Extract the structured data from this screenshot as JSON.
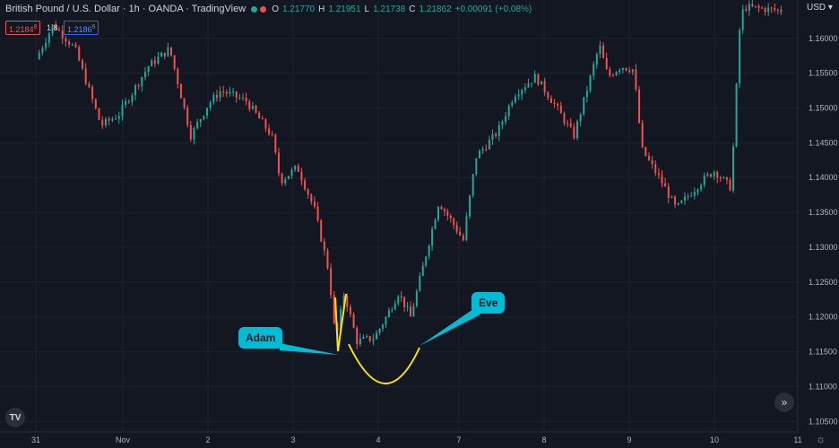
{
  "header": {
    "title": "British Pound / U.S. Dollar · 1h · OANDA · TradingView",
    "ohlc": {
      "o_label": "O",
      "o": "1.21770",
      "h_label": "H",
      "h": "1.21951",
      "l_label": "L",
      "l": "1.21738",
      "c_label": "C",
      "c": "1.21862",
      "change": "+0.00091 (+0.08%)"
    }
  },
  "trade": {
    "sell": "1.2184",
    "sell_sup": "8",
    "spread": "1.8",
    "buy": "1.2186",
    "buy_sup": "6"
  },
  "currency": "USD",
  "logo": "TV",
  "scroll_icon": "»",
  "settings_icon": "☼",
  "colors": {
    "up": "#26a69a",
    "down": "#ef5350",
    "background": "#131722",
    "grid": "#1e222d",
    "annotation": "#00bcd4",
    "curve": "#f2e218"
  },
  "annotations": {
    "adam": "Adam",
    "eve": "Eve"
  },
  "chart_data": {
    "type": "candlestick",
    "y_ticks": [
      "1.16000",
      "1.15500",
      "1.15000",
      "1.14500",
      "1.14000",
      "1.13500",
      "1.13000",
      "1.12500",
      "1.12000",
      "1.11500",
      "1.11000",
      "1.10500"
    ],
    "x_ticks": [
      "31",
      "Nov",
      "2",
      "3",
      "4",
      "7",
      "8",
      "9",
      "10",
      "11"
    ],
    "ylim": [
      1.1035,
      1.1655
    ],
    "grid": true,
    "close_path": [
      [
        0,
        1.157
      ],
      [
        0.2,
        1.162
      ],
      [
        0.45,
        1.1585
      ],
      [
        0.75,
        1.1475
      ],
      [
        0.95,
        1.149
      ],
      [
        1.3,
        1.156
      ],
      [
        1.55,
        1.1585
      ],
      [
        1.8,
        1.146
      ],
      [
        2.0,
        1.1505
      ],
      [
        2.15,
        1.1525
      ],
      [
        2.45,
        1.151
      ],
      [
        2.75,
        1.146
      ],
      [
        2.85,
        1.1395
      ],
      [
        3.05,
        1.1415
      ],
      [
        3.25,
        1.1355
      ],
      [
        3.42,
        1.1265
      ],
      [
        3.5,
        1.1165
      ],
      [
        3.6,
        1.1235
      ],
      [
        3.75,
        1.1165
      ],
      [
        3.95,
        1.117
      ],
      [
        4.1,
        1.12
      ],
      [
        4.25,
        1.1235
      ],
      [
        4.4,
        1.12
      ],
      [
        4.55,
        1.127
      ],
      [
        4.75,
        1.1365
      ],
      [
        4.95,
        1.133
      ],
      [
        5.05,
        1.131
      ],
      [
        5.2,
        1.143
      ],
      [
        5.45,
        1.1465
      ],
      [
        5.65,
        1.152
      ],
      [
        5.9,
        1.1545
      ],
      [
        6.15,
        1.15
      ],
      [
        6.35,
        1.146
      ],
      [
        6.65,
        1.159
      ],
      [
        6.75,
        1.1545
      ],
      [
        6.9,
        1.156
      ],
      [
        7.05,
        1.1555
      ],
      [
        7.15,
        1.144
      ],
      [
        7.4,
        1.139
      ],
      [
        7.55,
        1.1355
      ],
      [
        7.85,
        1.1395
      ],
      [
        8.0,
        1.141
      ],
      [
        8.2,
        1.1385
      ],
      [
        8.3,
        1.161
      ],
      [
        8.35,
        1.1645
      ],
      [
        8.8,
        1.164
      ]
    ]
  }
}
